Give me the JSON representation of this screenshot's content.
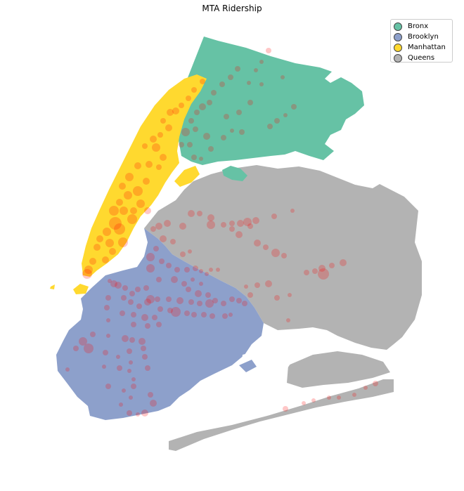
{
  "title": "MTA Ridership",
  "legend": [
    {
      "label": "Bronx",
      "color": "#66c2a5"
    },
    {
      "label": "Brooklyn",
      "color": "#8da0cb"
    },
    {
      "label": "Manhattan",
      "color": "#ffd92f"
    },
    {
      "label": "Queens",
      "color": "#b3b3b3"
    }
  ],
  "colors": {
    "Bronx": "#66c2a5",
    "Brooklyn": "#8da0cb",
    "Manhattan": "#ffd92f",
    "Queens": "#b3b3b3",
    "station_marker": "#ff0000"
  },
  "legend_position": "top-right"
}
